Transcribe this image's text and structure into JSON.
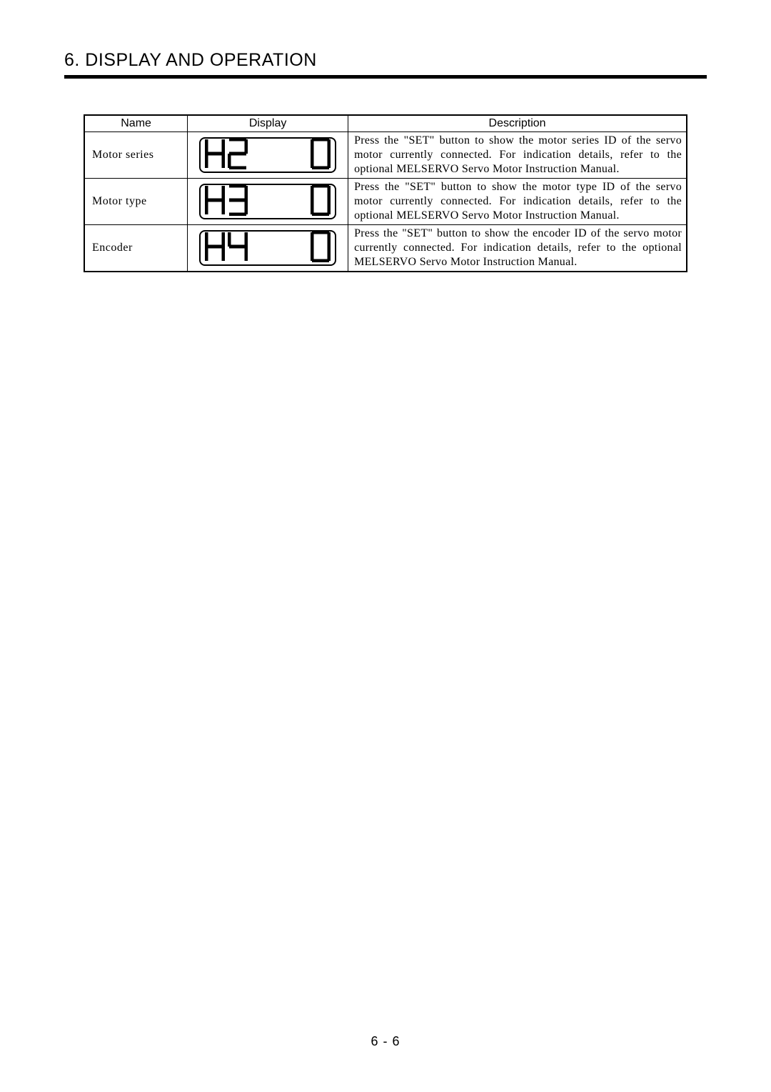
{
  "heading": "6. DISPLAY AND OPERATION",
  "page_number": "6 -  6",
  "table": {
    "columns": [
      "Name",
      "Display",
      "Description"
    ],
    "rows": [
      {
        "name": "Motor series",
        "segments": [
          "H",
          "2",
          " ",
          " ",
          "0"
        ],
        "description": "Press the \"SET\" button to show the motor series ID of the servo motor currently connected.\nFor indication details, refer to the optional MELSERVO Servo Motor Instruction Manual."
      },
      {
        "name": "Motor type",
        "segments": [
          "H",
          "3",
          " ",
          " ",
          "0"
        ],
        "description": "Press the \"SET\" button to show the motor type ID of the servo motor currently connected.\nFor indication details, refer to the optional MELSERVO Servo Motor Instruction Manual."
      },
      {
        "name": "Encoder",
        "segments": [
          "H",
          "4",
          " ",
          " ",
          "0"
        ],
        "description": "Press the \"SET\" button to show the encoder ID of the servo motor currently connected.\nFor indication details, refer to the optional MELSERVO Servo Motor Instruction Manual."
      }
    ]
  },
  "seven_segment": {
    "digit_w": 28,
    "digit_h": 44,
    "stroke": "#000000",
    "stroke_w": 5,
    "map": {
      "0": [
        "a",
        "b",
        "c",
        "d",
        "e",
        "f"
      ],
      "1": [
        "b",
        "c"
      ],
      "2": [
        "a",
        "b",
        "g",
        "e",
        "d"
      ],
      "3": [
        "a",
        "b",
        "g",
        "c",
        "d"
      ],
      "4": [
        "f",
        "g",
        "b",
        "c"
      ],
      "5": [
        "a",
        "f",
        "g",
        "c",
        "d"
      ],
      "6": [
        "a",
        "f",
        "g",
        "c",
        "d",
        "e"
      ],
      "7": [
        "a",
        "b",
        "c"
      ],
      "8": [
        "a",
        "b",
        "c",
        "d",
        "e",
        "f",
        "g"
      ],
      "9": [
        "a",
        "b",
        "c",
        "d",
        "f",
        "g"
      ],
      "H": [
        "f",
        "e",
        "b",
        "c",
        "g"
      ],
      " ": []
    }
  }
}
